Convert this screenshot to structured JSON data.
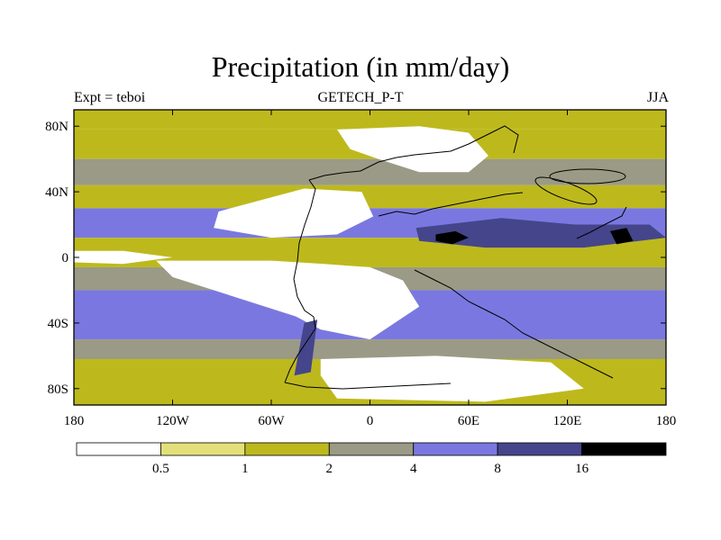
{
  "chart_data": {
    "type": "heatmap",
    "title": "Precipitation (in mm/day)",
    "left_string": "Expt = teboi",
    "center_string": "GETECH_P-T",
    "right_string": "JJA",
    "xlim": [
      -180,
      180
    ],
    "ylim": [
      -90,
      90
    ],
    "x_ticks": [
      {
        "value": -180,
        "label": "180"
      },
      {
        "value": -120,
        "label": "120W"
      },
      {
        "value": -60,
        "label": "60W"
      },
      {
        "value": 0,
        "label": "0"
      },
      {
        "value": 60,
        "label": "60E"
      },
      {
        "value": 120,
        "label": "120E"
      },
      {
        "value": 180,
        "label": "180"
      }
    ],
    "y_ticks": [
      {
        "value": 80,
        "label": "80N"
      },
      {
        "value": 40,
        "label": "40N"
      },
      {
        "value": 0,
        "label": "0"
      },
      {
        "value": -40,
        "label": "40S"
      },
      {
        "value": -80,
        "label": "80S"
      }
    ],
    "colorbar": {
      "levels": [
        "0.5",
        "1",
        "2",
        "4",
        "8",
        "16"
      ],
      "colors": [
        "#ffffff",
        "#e3e07a",
        "#bdb91c",
        "#9a9a86",
        "#7a78e0",
        "#45458c",
        "#000000"
      ]
    },
    "bands": [
      {
        "lat_top": 90,
        "lat_bot": 78,
        "level": 2
      },
      {
        "lat_top": 78,
        "lat_bot": 60,
        "level": 2
      },
      {
        "lat_top": 60,
        "lat_bot": 44,
        "level": 3
      },
      {
        "lat_top": 44,
        "lat_bot": 30,
        "level": 2
      },
      {
        "lat_top": 30,
        "lat_bot": 12,
        "level": 4
      },
      {
        "lat_top": 12,
        "lat_bot": -6,
        "level": 2
      },
      {
        "lat_top": -6,
        "lat_bot": -20,
        "level": 3
      },
      {
        "lat_top": -20,
        "lat_bot": -50,
        "level": 4
      },
      {
        "lat_top": -50,
        "lat_bot": -62,
        "level": 3
      },
      {
        "lat_top": -62,
        "lat_bot": -90,
        "level": 2
      }
    ],
    "regions": [
      {
        "name": "dry-north-pangea",
        "level": 0,
        "points": [
          [
            -92,
            28
          ],
          [
            -40,
            42
          ],
          [
            -5,
            40
          ],
          [
            2,
            25
          ],
          [
            -20,
            14
          ],
          [
            -60,
            12
          ],
          [
            -95,
            18
          ]
        ]
      },
      {
        "name": "dry-south-pangea",
        "level": 0,
        "points": [
          [
            -130,
            -2
          ],
          [
            -60,
            -2
          ],
          [
            -28,
            -4
          ],
          [
            0,
            -6
          ],
          [
            20,
            -14
          ],
          [
            30,
            -30
          ],
          [
            0,
            -50
          ],
          [
            -30,
            -44
          ],
          [
            -45,
            -36
          ],
          [
            -120,
            -12
          ]
        ]
      },
      {
        "name": "dry-tethys-north",
        "level": 0,
        "points": [
          [
            -20,
            78
          ],
          [
            30,
            80
          ],
          [
            60,
            76
          ],
          [
            72,
            62
          ],
          [
            60,
            52
          ],
          [
            30,
            52
          ],
          [
            5,
            60
          ],
          [
            -12,
            66
          ]
        ]
      },
      {
        "name": "dry-equator-strip",
        "level": 0,
        "points": [
          [
            -180,
            4
          ],
          [
            -150,
            4
          ],
          [
            -120,
            0
          ],
          [
            -150,
            -4
          ],
          [
            -180,
            -3
          ]
        ]
      },
      {
        "name": "dry-south-polar",
        "level": 0,
        "points": [
          [
            -30,
            -62
          ],
          [
            40,
            -60
          ],
          [
            110,
            -64
          ],
          [
            130,
            -80
          ],
          [
            70,
            -88
          ],
          [
            -20,
            -86
          ],
          [
            -30,
            -72
          ]
        ]
      },
      {
        "name": "wet-tethys-band",
        "level": 5,
        "points": [
          [
            28,
            18
          ],
          [
            80,
            24
          ],
          [
            125,
            20
          ],
          [
            170,
            20
          ],
          [
            180,
            12
          ],
          [
            130,
            6
          ],
          [
            70,
            6
          ],
          [
            30,
            10
          ]
        ]
      },
      {
        "name": "wet-blob-1",
        "level": 6,
        "points": [
          [
            40,
            14
          ],
          [
            52,
            16
          ],
          [
            60,
            12
          ],
          [
            50,
            8
          ],
          [
            40,
            10
          ]
        ]
      },
      {
        "name": "wet-blob-2",
        "level": 6,
        "points": [
          [
            146,
            16
          ],
          [
            156,
            18
          ],
          [
            160,
            10
          ],
          [
            150,
            8
          ]
        ]
      },
      {
        "name": "wet-blob-3",
        "level": 5,
        "points": [
          [
            -40,
            -40
          ],
          [
            -32,
            -38
          ],
          [
            -36,
            -70
          ],
          [
            -46,
            -72
          ]
        ]
      }
    ]
  }
}
